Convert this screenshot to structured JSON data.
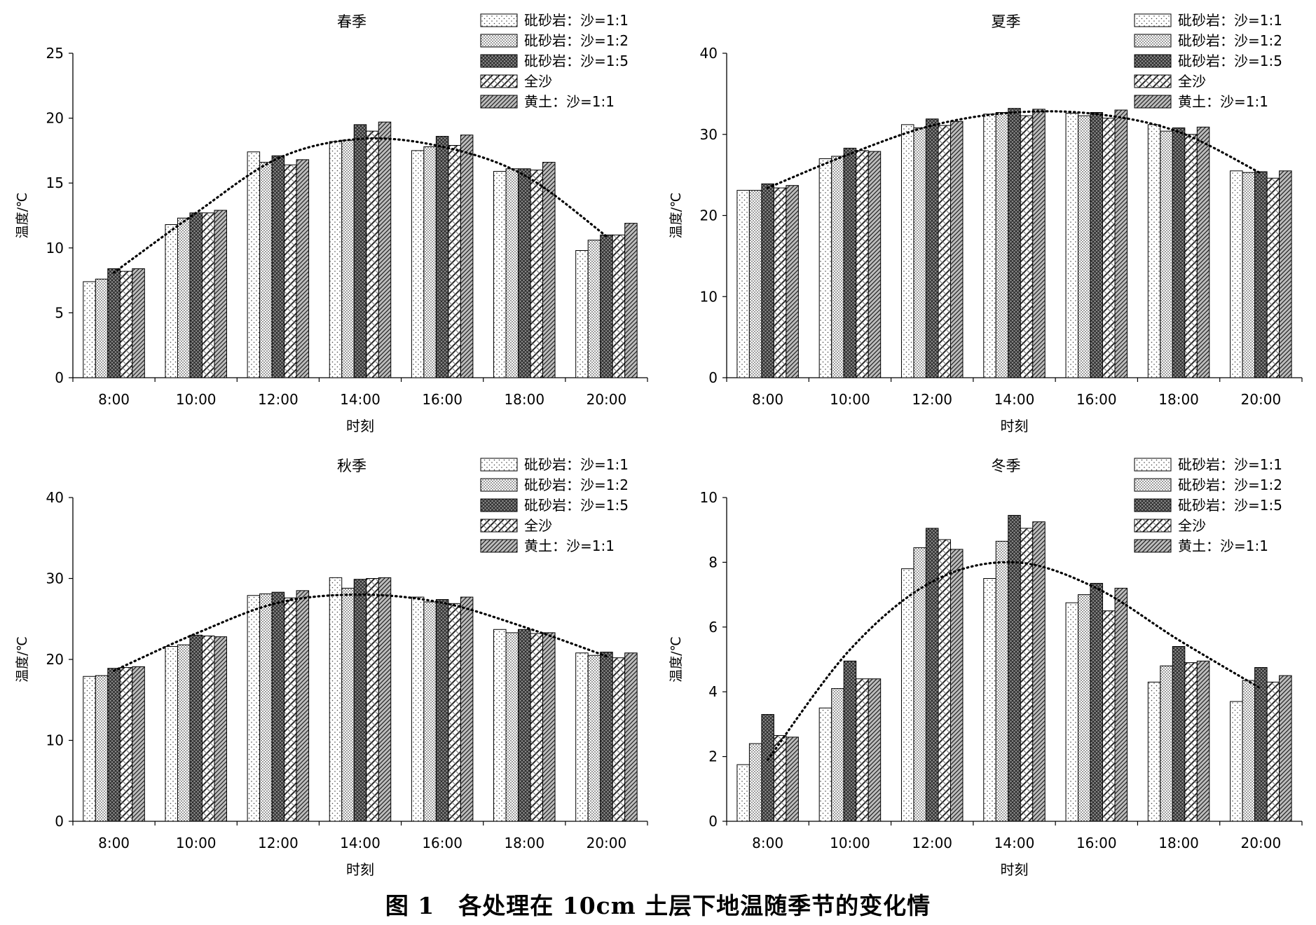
{
  "caption": "图 1　各处理在 10cm 土层下地温随季节的变化情",
  "patterns": [
    "dots-sparse",
    "dots-dense",
    "crosshatch-dark",
    "diagonal-weave",
    "diagonal-lines"
  ],
  "chart_data": [
    {
      "type": "bar",
      "title": "春季",
      "xlabel": "时刻",
      "ylabel": "温度/℃",
      "ylim": [
        0,
        25
      ],
      "yticks": [
        "0",
        "5",
        "10",
        "15",
        "20",
        "25"
      ],
      "legend_position": "top-right",
      "categories": [
        "8:00",
        "10:00",
        "12:00",
        "14:00",
        "16:00",
        "18:00",
        "20:00"
      ],
      "series": [
        {
          "name": "砒砂岩：沙=1:1",
          "values": [
            7.4,
            11.8,
            17.4,
            18.2,
            17.5,
            15.9,
            9.8
          ]
        },
        {
          "name": "砒砂岩：沙=1:2",
          "values": [
            7.6,
            12.3,
            16.6,
            18.3,
            17.8,
            16.1,
            10.6
          ]
        },
        {
          "name": "砒砂岩：沙=1:5",
          "values": [
            8.4,
            12.7,
            17.1,
            19.5,
            18.6,
            16.1,
            11.0
          ]
        },
        {
          "name": "全沙",
          "values": [
            8.2,
            12.7,
            16.4,
            19.0,
            17.9,
            16.0,
            11.0
          ]
        },
        {
          "name": "黄土：沙=1:1",
          "values": [
            8.4,
            12.9,
            16.8,
            19.7,
            18.7,
            16.6,
            11.9
          ]
        }
      ],
      "trendline": {
        "style": "dotted",
        "x": [
          "8:00",
          "10:00",
          "12:00",
          "14:00",
          "16:00",
          "18:00",
          "20:00"
        ],
        "y": [
          8.1,
          12.7,
          16.9,
          18.4,
          17.8,
          15.6,
          10.9
        ]
      }
    },
    {
      "type": "bar",
      "title": "夏季",
      "xlabel": "时刻",
      "ylabel": "温度/℃",
      "ylim": [
        0,
        40
      ],
      "yticks": [
        "0",
        "10",
        "20",
        "30",
        "40"
      ],
      "legend_position": "top-right",
      "categories": [
        "8:00",
        "10:00",
        "12:00",
        "14:00",
        "16:00",
        "18:00",
        "20:00"
      ],
      "series": [
        {
          "name": "砒砂岩：沙=1:1",
          "values": [
            23.1,
            27.0,
            31.2,
            32.5,
            32.6,
            31.2,
            25.5
          ]
        },
        {
          "name": "砒砂岩：沙=1:2",
          "values": [
            23.1,
            27.3,
            30.8,
            32.7,
            32.3,
            30.4,
            25.3
          ]
        },
        {
          "name": "砒砂岩：沙=1:5",
          "values": [
            23.9,
            28.3,
            31.9,
            33.2,
            32.7,
            30.8,
            25.4
          ]
        },
        {
          "name": "全沙",
          "values": [
            23.4,
            28.0,
            31.1,
            32.3,
            32.0,
            30.0,
            24.6
          ]
        },
        {
          "name": "黄土：沙=1:1",
          "values": [
            23.7,
            27.9,
            31.6,
            33.1,
            33.0,
            30.9,
            25.5
          ]
        }
      ],
      "trendline": {
        "style": "dotted",
        "x": [
          "8:00",
          "10:00",
          "12:00",
          "14:00",
          "16:00",
          "18:00",
          "20:00"
        ],
        "y": [
          23.4,
          27.6,
          31.1,
          32.7,
          32.5,
          30.3,
          25.2
        ]
      }
    },
    {
      "type": "bar",
      "title": "秋季",
      "xlabel": "时刻",
      "ylabel": "温度/℃",
      "ylim": [
        0,
        40
      ],
      "yticks": [
        "0",
        "10",
        "20",
        "30",
        "40"
      ],
      "legend_position": "top-right",
      "categories": [
        "8:00",
        "10:00",
        "12:00",
        "14:00",
        "16:00",
        "18:00",
        "20:00"
      ],
      "series": [
        {
          "name": "砒砂岩：沙=1:1",
          "values": [
            17.9,
            21.6,
            27.9,
            30.1,
            27.7,
            23.7,
            20.8
          ]
        },
        {
          "name": "砒砂岩：沙=1:2",
          "values": [
            18.0,
            21.8,
            28.1,
            28.8,
            27.1,
            23.3,
            20.5
          ]
        },
        {
          "name": "砒砂岩：沙=1:5",
          "values": [
            18.9,
            23.0,
            28.3,
            29.9,
            27.4,
            23.7,
            20.9
          ]
        },
        {
          "name": "全沙",
          "values": [
            19.0,
            22.9,
            27.6,
            30.0,
            26.9,
            23.2,
            20.2
          ]
        },
        {
          "name": "黄土：沙=1:1",
          "values": [
            19.1,
            22.8,
            28.5,
            30.1,
            27.7,
            23.3,
            20.8
          ]
        }
      ],
      "trendline": {
        "style": "dotted",
        "x": [
          "8:00",
          "10:00",
          "12:00",
          "14:00",
          "16:00",
          "18:00",
          "20:00"
        ],
        "y": [
          18.6,
          23.2,
          27.0,
          28.0,
          27.0,
          24.0,
          20.4
        ]
      }
    },
    {
      "type": "bar",
      "title": "冬季",
      "xlabel": "时刻",
      "ylabel": "温度/℃",
      "ylim": [
        0,
        10
      ],
      "yticks": [
        "0",
        "2",
        "4",
        "6",
        "8",
        "10"
      ],
      "legend_position": "top-right",
      "categories": [
        "8:00",
        "10:00",
        "12:00",
        "14:00",
        "16:00",
        "18:00",
        "20:00"
      ],
      "series": [
        {
          "name": "砒砂岩：沙=1:1",
          "values": [
            1.75,
            3.5,
            7.8,
            7.5,
            6.75,
            4.3,
            3.7
          ]
        },
        {
          "name": "砒砂岩：沙=1:2",
          "values": [
            2.4,
            4.1,
            8.45,
            8.65,
            7.0,
            4.8,
            4.35
          ]
        },
        {
          "name": "砒砂岩：沙=1:5",
          "values": [
            3.3,
            4.95,
            9.05,
            9.45,
            7.35,
            5.4,
            4.75
          ]
        },
        {
          "name": "全沙",
          "values": [
            2.65,
            4.4,
            8.7,
            9.05,
            6.5,
            4.9,
            4.3
          ]
        },
        {
          "name": "黄土：沙=1:1",
          "values": [
            2.6,
            4.4,
            8.4,
            9.25,
            7.2,
            4.95,
            4.5
          ]
        }
      ],
      "trendline": {
        "style": "dotted",
        "x": [
          "8:00",
          "10:00",
          "12:00",
          "14:00",
          "16:00",
          "18:00",
          "20:00"
        ],
        "y": [
          1.9,
          5.3,
          7.4,
          8.0,
          7.2,
          5.6,
          4.1
        ]
      }
    }
  ]
}
